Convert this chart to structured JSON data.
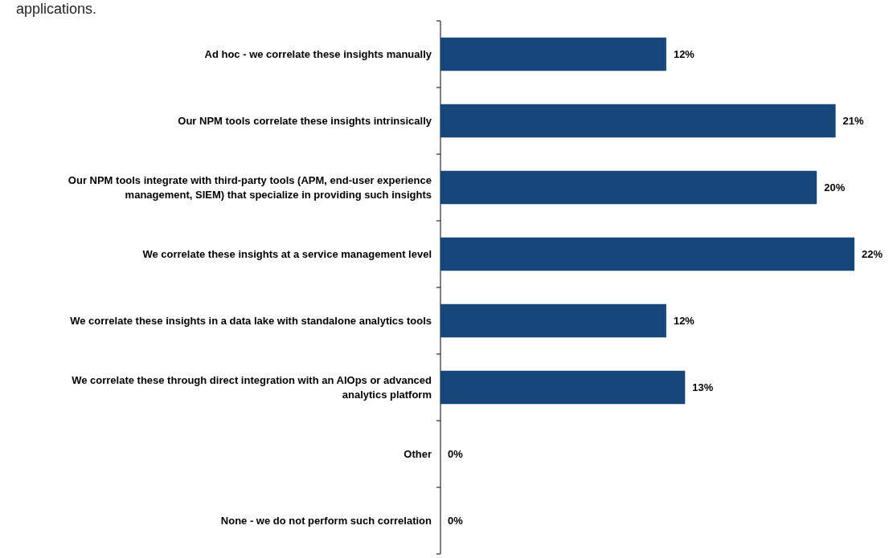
{
  "chart_data": {
    "type": "bar",
    "orientation": "horizontal",
    "title": "applications.",
    "categories": [
      "Ad hoc - we correlate these insights manually",
      "Our NPM tools correlate these insights intrinsically",
      "Our NPM tools integrate with third-party tools (APM, end-user experience management, SIEM) that specialize in providing such insights",
      "We correlate these insights at a service management level",
      "We correlate these insights in a data lake with standalone analytics tools",
      "We correlate these through direct integration with an AIOps or advanced analytics platform",
      "Other",
      "None - we do not perform such correlation"
    ],
    "values": [
      12,
      21,
      20,
      22,
      12,
      13,
      0,
      0
    ],
    "value_labels": [
      "12%",
      "21%",
      "20%",
      "22%",
      "12%",
      "13%",
      "0%",
      "0%"
    ],
    "color": "#17477a"
  }
}
